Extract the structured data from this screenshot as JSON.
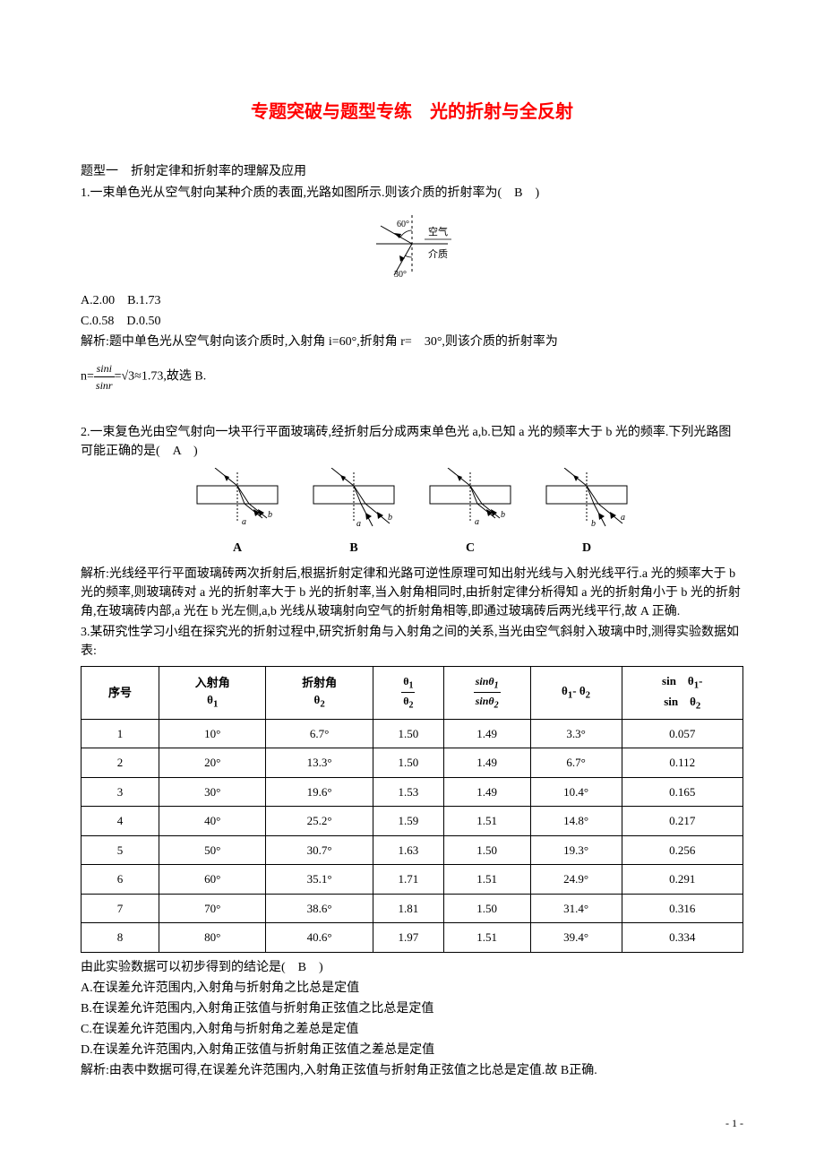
{
  "title": "专题突破与题型专练　光的折射与全反射",
  "section1": "题型一　折射定律和折射率的理解及应用",
  "q1": {
    "prompt": "1.一束单色光从空气射向某种介质的表面,光路如图所示.则该介质的折射率为(　B　)",
    "fig": {
      "angle_top": "60°",
      "angle_bot": "30°",
      "label_air": "空气",
      "label_med": "介质"
    },
    "opts": "A.2.00　B.1.73",
    "opts2": "C.0.58　D.0.50",
    "exp_a": "解析:题中单色光从空气射向该介质时,入射角 i=60°,折射角 r=　30°,则该介质的折射率为",
    "exp_b_pre": "n=",
    "exp_b_num": "sini",
    "exp_b_den": "sinr",
    "exp_b_mid": "=√3≈1.73,故选 B."
  },
  "q2": {
    "prompt": "2.一束复色光由空气射向一块平行平面玻璃砖,经折射后分成两束单色光 a,b.已知 a 光的频率大于 b 光的频率.下列光路图可能正确的是(　A　)",
    "labels": [
      "A",
      "B",
      "C",
      "D"
    ],
    "lbl_a": "a",
    "lbl_b": "b",
    "exp": "解析:光线经平行平面玻璃砖两次折射后,根据折射定律和光路可逆性原理可知出射光线与入射光线平行.a 光的频率大于 b 光的频率,则玻璃砖对 a 光的折射率大于 b 光的折射率,当入射角相同时,由折射定律分析得知 a 光的折射角小于 b 光的折射角,在玻璃砖内部,a 光在 b 光左侧,a,b 光线从玻璃射向空气的折射角相等,即通过玻璃砖后两光线平行,故 A 正确."
  },
  "q3": {
    "intro": "3.某研究性学习小组在探究光的折射过程中,研究折射角与入射角之间的关系,当光由空气斜射入玻璃中时,测得实验数据如表:",
    "table": {
      "headers": {
        "c1": "序号",
        "c2a": "入射角",
        "c2b": "θ",
        "c3a": "折射角",
        "c3b": "θ",
        "c4num": "θ",
        "c4den": "θ",
        "c5num": "sinθ",
        "c5den": "sinθ",
        "c6a": "θ",
        "c6b": "- θ",
        "c7a": "sin　θ",
        "c7b": "sin　θ"
      },
      "rows": [
        [
          "1",
          "10°",
          "6.7°",
          "1.50",
          "1.49",
          "3.3°",
          "0.057"
        ],
        [
          "2",
          "20°",
          "13.3°",
          "1.50",
          "1.49",
          "6.7°",
          "0.112"
        ],
        [
          "3",
          "30°",
          "19.6°",
          "1.53",
          "1.49",
          "10.4°",
          "0.165"
        ],
        [
          "4",
          "40°",
          "25.2°",
          "1.59",
          "1.51",
          "14.8°",
          "0.217"
        ],
        [
          "5",
          "50°",
          "30.7°",
          "1.63",
          "1.50",
          "19.3°",
          "0.256"
        ],
        [
          "6",
          "60°",
          "35.1°",
          "1.71",
          "1.51",
          "24.9°",
          "0.291"
        ],
        [
          "7",
          "70°",
          "38.6°",
          "1.81",
          "1.50",
          "31.4°",
          "0.316"
        ],
        [
          "8",
          "80°",
          "40.6°",
          "1.97",
          "1.51",
          "39.4°",
          "0.334"
        ]
      ]
    },
    "post": "由此实验数据可以初步得到的结论是(　B　)",
    "opts": [
      "A.在误差允许范围内,入射角与折射角之比总是定值",
      "B.在误差允许范围内,入射角正弦值与折射角正弦值之比总是定值",
      "C.在误差允许范围内,入射角与折射角之差总是定值",
      "D.在误差允许范围内,入射角正弦值与折射角正弦值之差总是定值"
    ],
    "exp": "解析:由表中数据可得,在误差允许范围内,入射角正弦值与折射角正弦值之比总是定值.故 B正确."
  },
  "pagenum": "- 1 -"
}
